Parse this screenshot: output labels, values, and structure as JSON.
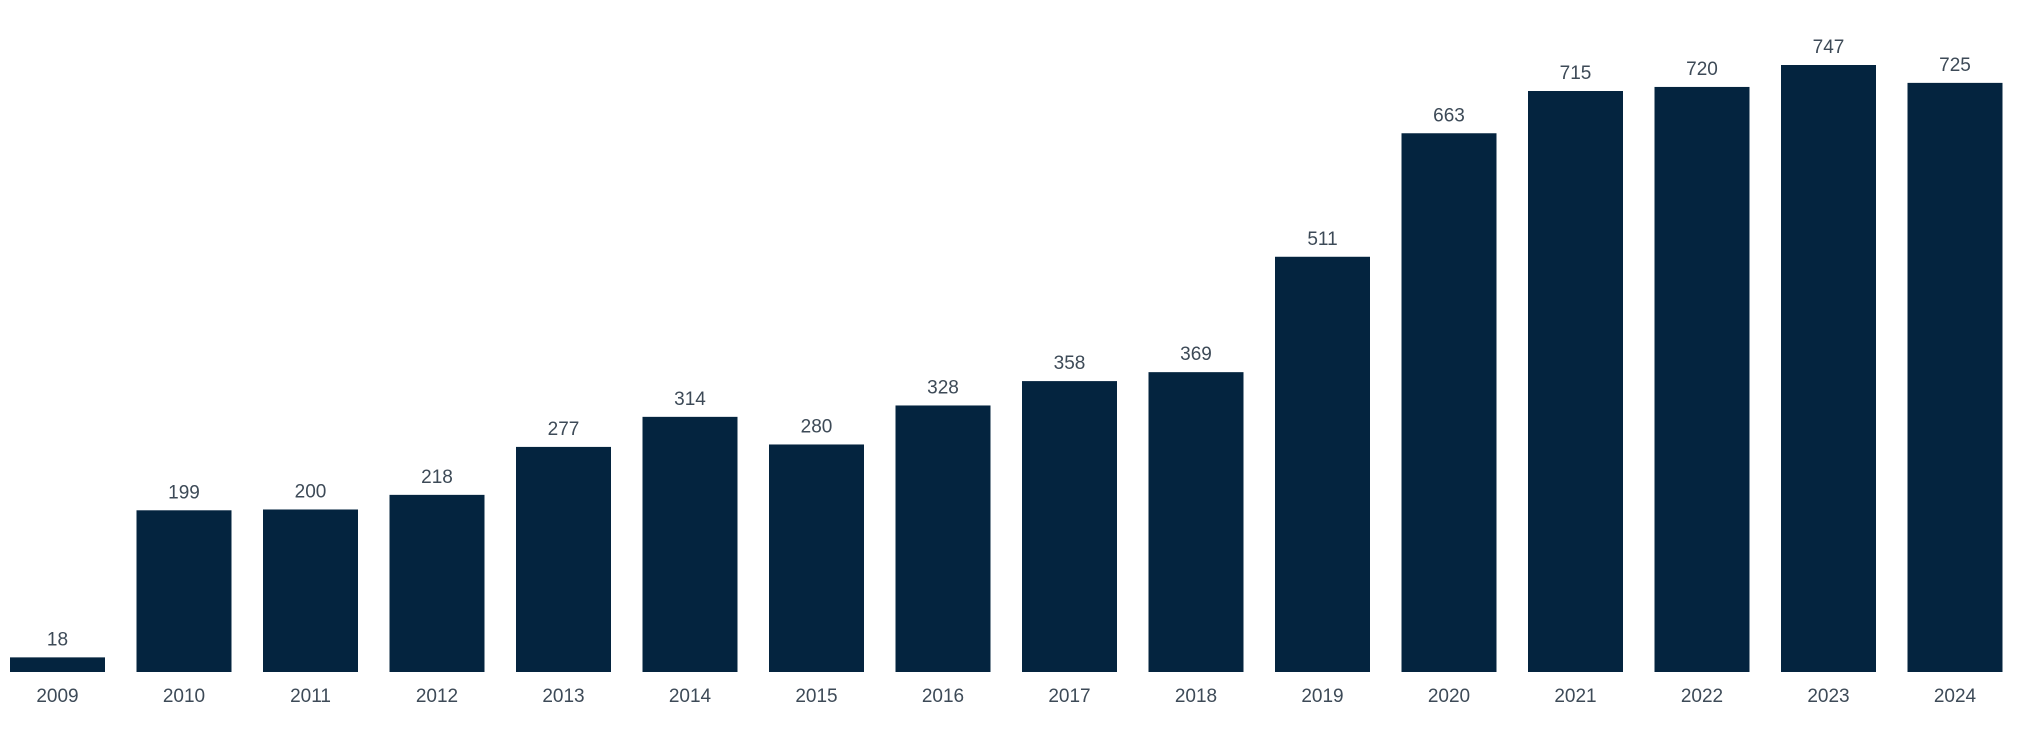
{
  "chart_data": {
    "type": "bar",
    "title": "",
    "xlabel": "",
    "ylabel": "",
    "categories": [
      "2009",
      "2010",
      "2011",
      "2012",
      "2013",
      "2014",
      "2015",
      "2016",
      "2017",
      "2018",
      "2019",
      "2020",
      "2021",
      "2022",
      "2023",
      "2024"
    ],
    "values": [
      18,
      199,
      200,
      218,
      277,
      314,
      280,
      328,
      358,
      369,
      511,
      663,
      715,
      720,
      747,
      725
    ],
    "ylim": [
      0,
      747
    ],
    "grid": false,
    "legend": "none",
    "data_labels": true,
    "bar_color": "#04243f",
    "label_color": "#3d4a57"
  }
}
